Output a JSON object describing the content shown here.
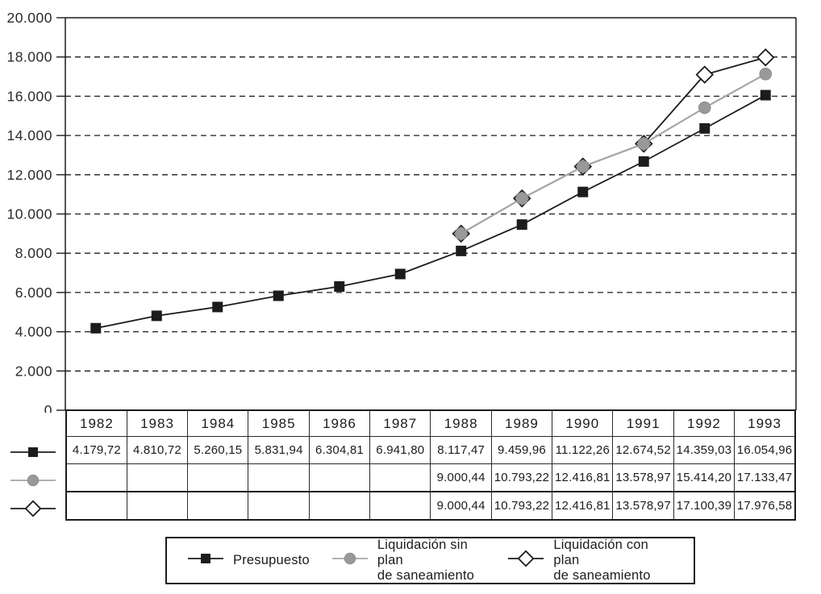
{
  "chart_data": {
    "type": "line",
    "title": "",
    "xlabel": "",
    "ylabel": "",
    "categories": [
      "1982",
      "1983",
      "1984",
      "1985",
      "1986",
      "1987",
      "1988",
      "1989",
      "1990",
      "1991",
      "1992",
      "1993"
    ],
    "ylim": [
      0,
      20000
    ],
    "ytick_step": 2000,
    "yticks": [
      {
        "value": 0,
        "label": "0"
      },
      {
        "value": 2000,
        "label": "2.000"
      },
      {
        "value": 4000,
        "label": "4.000"
      },
      {
        "value": 6000,
        "label": "6.000"
      },
      {
        "value": 8000,
        "label": "8.000"
      },
      {
        "value": 10000,
        "label": "10.000"
      },
      {
        "value": 12000,
        "label": "12.000"
      },
      {
        "value": 14000,
        "label": "14.000"
      },
      {
        "value": 16000,
        "label": "16.000"
      },
      {
        "value": 18000,
        "label": "18.000"
      },
      {
        "value": 20000,
        "label": "20.000"
      }
    ],
    "grid": "horizontal-dashed",
    "legend_position": "bottom",
    "series": [
      {
        "name": "Presupuesto",
        "marker": "square",
        "line_color": "#1c1c1c",
        "fill_color": "#1c1c1c",
        "values": [
          4179.72,
          4810.72,
          5260.15,
          5831.94,
          6304.81,
          6941.8,
          8117.47,
          9459.96,
          11122.26,
          12674.52,
          14359.03,
          16054.96
        ]
      },
      {
        "name": "Liquidación sin plan de saneamiento",
        "marker": "circle",
        "line_color": "#a6a6a6",
        "fill_color": "#999999",
        "values": [
          null,
          null,
          null,
          null,
          null,
          null,
          9000.44,
          10793.22,
          12416.81,
          13578.97,
          15414.2,
          17133.47
        ]
      },
      {
        "name": "Liquidación con plan de saneamiento",
        "marker": "diamond",
        "line_color": "#1c1c1c",
        "fill_color": "#ffffff",
        "values": [
          null,
          null,
          null,
          null,
          null,
          null,
          9000.44,
          10793.22,
          12416.81,
          13578.97,
          17100.39,
          17976.58
        ]
      }
    ]
  },
  "table": {
    "header": [
      "1982",
      "1983",
      "1984",
      "1985",
      "1986",
      "1987",
      "1988",
      "1989",
      "1990",
      "1991",
      "1992",
      "1993"
    ],
    "rows": [
      {
        "marker": "square",
        "cells": [
          "4.179,72",
          "4.810,72",
          "5.260,15",
          "5.831,94",
          "6.304,81",
          "6.941,80",
          "8.117,47",
          "9.459,96",
          "11.122,26",
          "12.674,52",
          "14.359,03",
          "16.054,96"
        ]
      },
      {
        "marker": "circle",
        "cells": [
          "",
          "",
          "",
          "",
          "",
          "",
          "9.000,44",
          "10.793,22",
          "12.416,81",
          "13.578,97",
          "15.414,20",
          "17.133,47"
        ]
      },
      {
        "marker": "diamond",
        "cells": [
          "",
          "",
          "",
          "",
          "",
          "",
          "9.000,44",
          "10.793,22",
          "12.416,81",
          "13.578,97",
          "17.100,39",
          "17.976,58"
        ]
      }
    ]
  },
  "legend": {
    "items": [
      {
        "marker": "square",
        "label_lines": [
          "Presupuesto"
        ]
      },
      {
        "marker": "circle",
        "label_lines": [
          "Liquidación sin plan",
          "de saneamiento"
        ]
      },
      {
        "marker": "diamond",
        "label_lines": [
          "Liquidación con plan",
          "de saneamiento"
        ]
      }
    ]
  },
  "colors": {
    "black": "#1c1c1c",
    "gray_fill": "#999999",
    "gray_line": "#a6a6a6",
    "white": "#ffffff"
  }
}
